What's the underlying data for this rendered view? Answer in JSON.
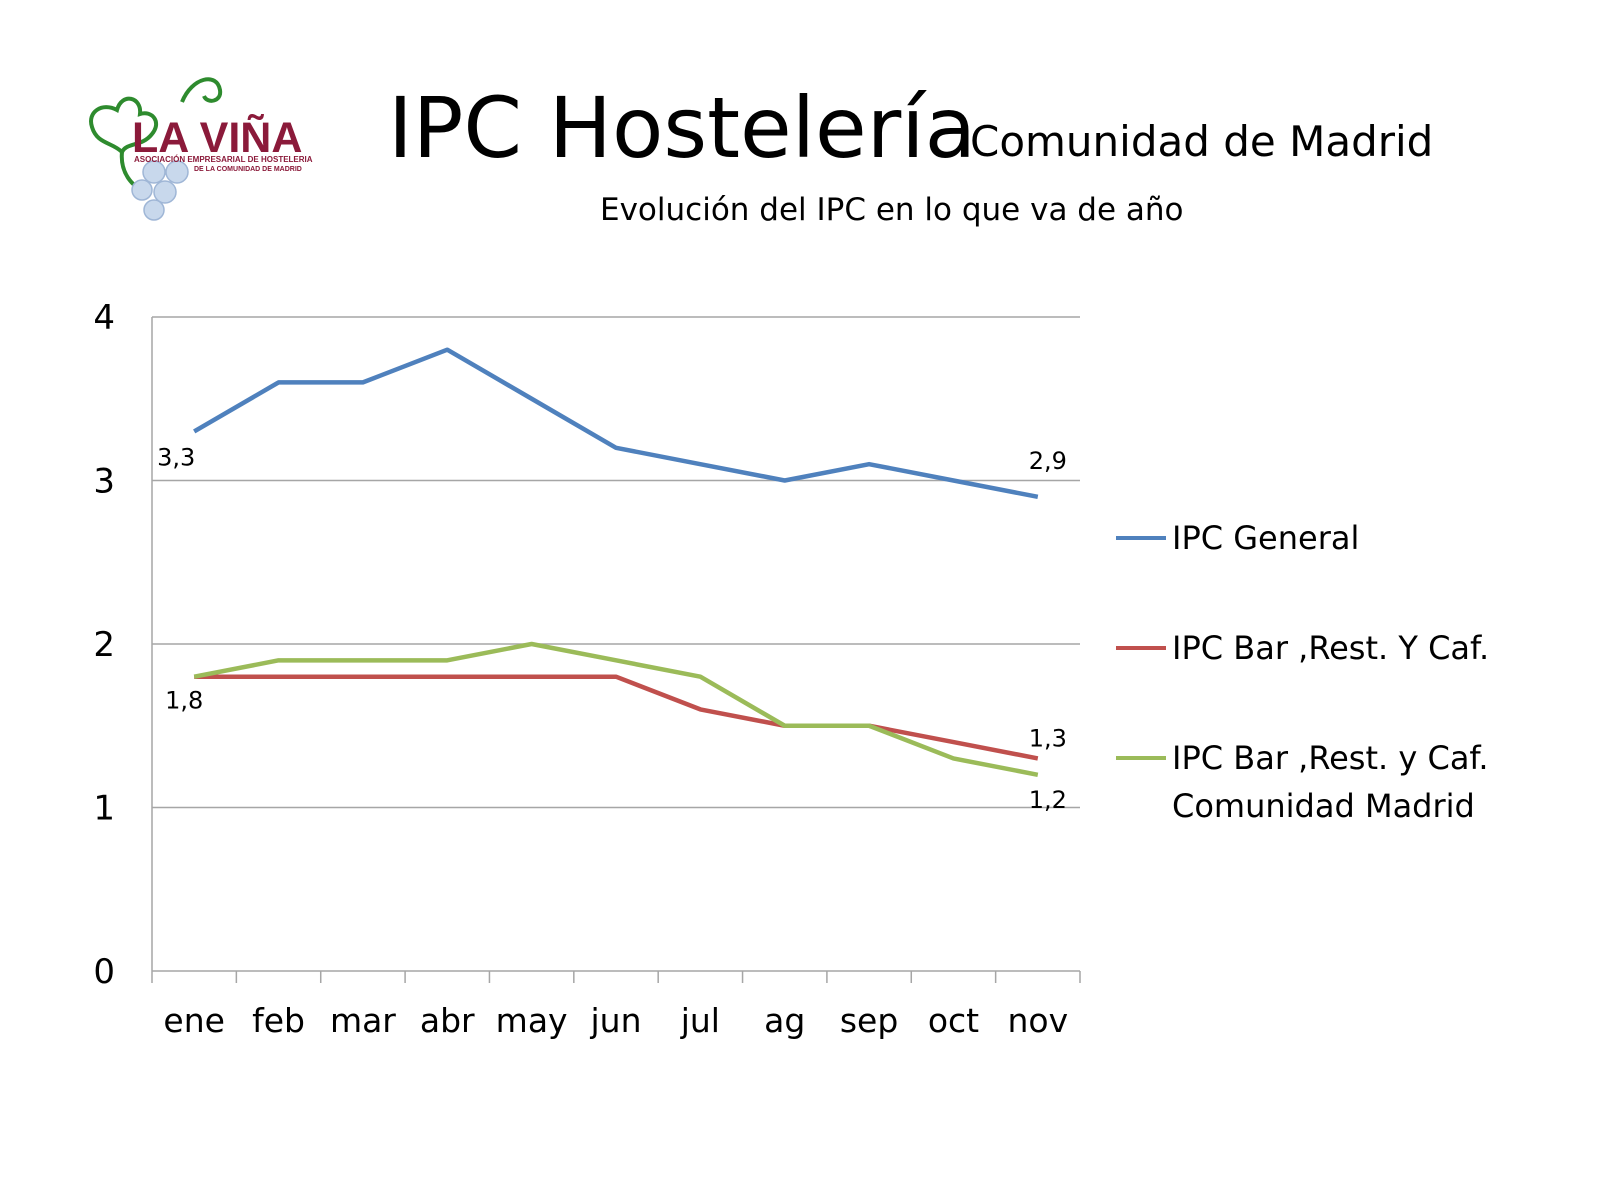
{
  "logo": {
    "name": "LA VIÑA",
    "line1": "ASOCIACIÓN EMPRESARIAL DE HOSTELERIA",
    "line2": "DE LA COMUNIDAD DE MADRID"
  },
  "header": {
    "title": "IPC Hostelería",
    "region": "Comunidad de Madrid",
    "subtitle": "Evolución del IPC en lo que va de año"
  },
  "chart_data": {
    "type": "line",
    "categories": [
      "ene",
      "feb",
      "mar",
      "abr",
      "may",
      "jun",
      "jul",
      "ag",
      "sep",
      "oct",
      "nov"
    ],
    "ylim": [
      0,
      4
    ],
    "yticks": [
      "0",
      "1",
      "2",
      "3",
      "4"
    ],
    "grid": true,
    "legend": "right",
    "series": [
      {
        "name": "IPC General",
        "color": "#4f81bd",
        "values": [
          3.3,
          3.6,
          3.6,
          3.8,
          3.5,
          3.2,
          3.1,
          3.0,
          3.1,
          3.0,
          2.9
        ]
      },
      {
        "name": "IPC Bar ,Rest. Y Caf.",
        "color": "#c0504d",
        "values": [
          1.8,
          1.8,
          1.8,
          1.8,
          1.8,
          1.8,
          1.6,
          1.5,
          1.5,
          1.4,
          1.3
        ]
      },
      {
        "name": "IPC Bar ,Rest. y Caf. Comunidad Madrid",
        "color": "#9bbb59",
        "values": [
          1.8,
          1.9,
          1.9,
          1.9,
          2.0,
          1.9,
          1.8,
          1.5,
          1.5,
          1.3,
          1.2
        ]
      }
    ],
    "annotations": [
      {
        "text": "3,3",
        "series": 0,
        "index": 0
      },
      {
        "text": "2,9",
        "series": 0,
        "index": 10
      },
      {
        "text": "1,8",
        "series": 1,
        "index": 0
      },
      {
        "text": "1,3",
        "series": 1,
        "index": 10
      },
      {
        "text": "1,2",
        "series": 2,
        "index": 10
      }
    ]
  }
}
